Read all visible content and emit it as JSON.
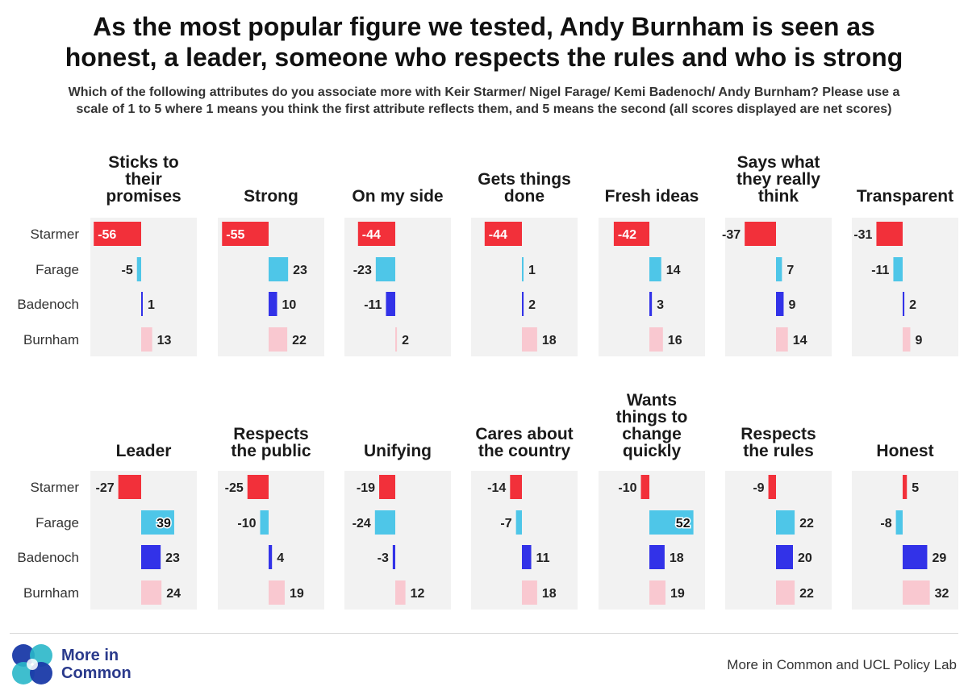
{
  "header": {
    "title_line1": "As the most popular figure we tested, Andy Burnham is seen as",
    "title_line2": "honest, a leader, someone who respects the rules and who is strong",
    "subtitle_line1": "Which of the following attributes do you associate more with Keir Starmer/ Nigel Farage/ Kemi Badenoch/ Andy Burnham? Please use a",
    "subtitle_line2": "scale of 1 to 5 where 1 means you think the first attribute reflects them, and 5 means the second (all scores displayed are net scores)"
  },
  "colors": {
    "Starmer": "#f2303a",
    "Farage": "#4ec6e8",
    "Badenoch": "#3232e8",
    "Burnham": "#f9c8d0",
    "panel_bg": "#f2f2f2"
  },
  "chart_data": {
    "type": "bar",
    "orientation": "horizontal",
    "categories": [
      "Starmer",
      "Farage",
      "Badenoch",
      "Burnham"
    ],
    "panels": [
      {
        "title": [
          "Sticks to",
          "their",
          "promises"
        ],
        "values": [
          -56,
          -5,
          1,
          13
        ]
      },
      {
        "title": [
          "Strong"
        ],
        "values": [
          -55,
          23,
          10,
          22
        ]
      },
      {
        "title": [
          "On my side"
        ],
        "values": [
          -44,
          -23,
          -11,
          2
        ]
      },
      {
        "title": [
          "Gets things",
          "done"
        ],
        "values": [
          -44,
          1,
          2,
          18
        ]
      },
      {
        "title": [
          "Fresh ideas"
        ],
        "values": [
          -42,
          14,
          3,
          16
        ]
      },
      {
        "title": [
          "Says what",
          "they really",
          "think"
        ],
        "values": [
          -37,
          7,
          9,
          14
        ]
      },
      {
        "title": [
          "Transparent"
        ],
        "values": [
          -31,
          -11,
          2,
          9
        ]
      },
      {
        "title": [
          "Leader"
        ],
        "values": [
          -27,
          39,
          23,
          24
        ]
      },
      {
        "title": [
          "Respects",
          "the public"
        ],
        "values": [
          -25,
          -10,
          4,
          19
        ]
      },
      {
        "title": [
          "Unifying"
        ],
        "values": [
          -19,
          -24,
          -3,
          12
        ]
      },
      {
        "title": [
          "Cares about",
          "the country"
        ],
        "values": [
          -14,
          -7,
          11,
          18
        ]
      },
      {
        "title": [
          "Wants",
          "things to",
          "change",
          "quickly"
        ],
        "values": [
          -10,
          52,
          18,
          19
        ]
      },
      {
        "title": [
          "Respects",
          "the rules"
        ],
        "values": [
          -9,
          22,
          20,
          22
        ]
      },
      {
        "title": [
          "Honest"
        ],
        "values": [
          5,
          -8,
          29,
          32
        ]
      }
    ]
  },
  "footer": {
    "logo_line1": "More in",
    "logo_line2": "Common",
    "source": "More in Common and UCL Policy Lab"
  }
}
